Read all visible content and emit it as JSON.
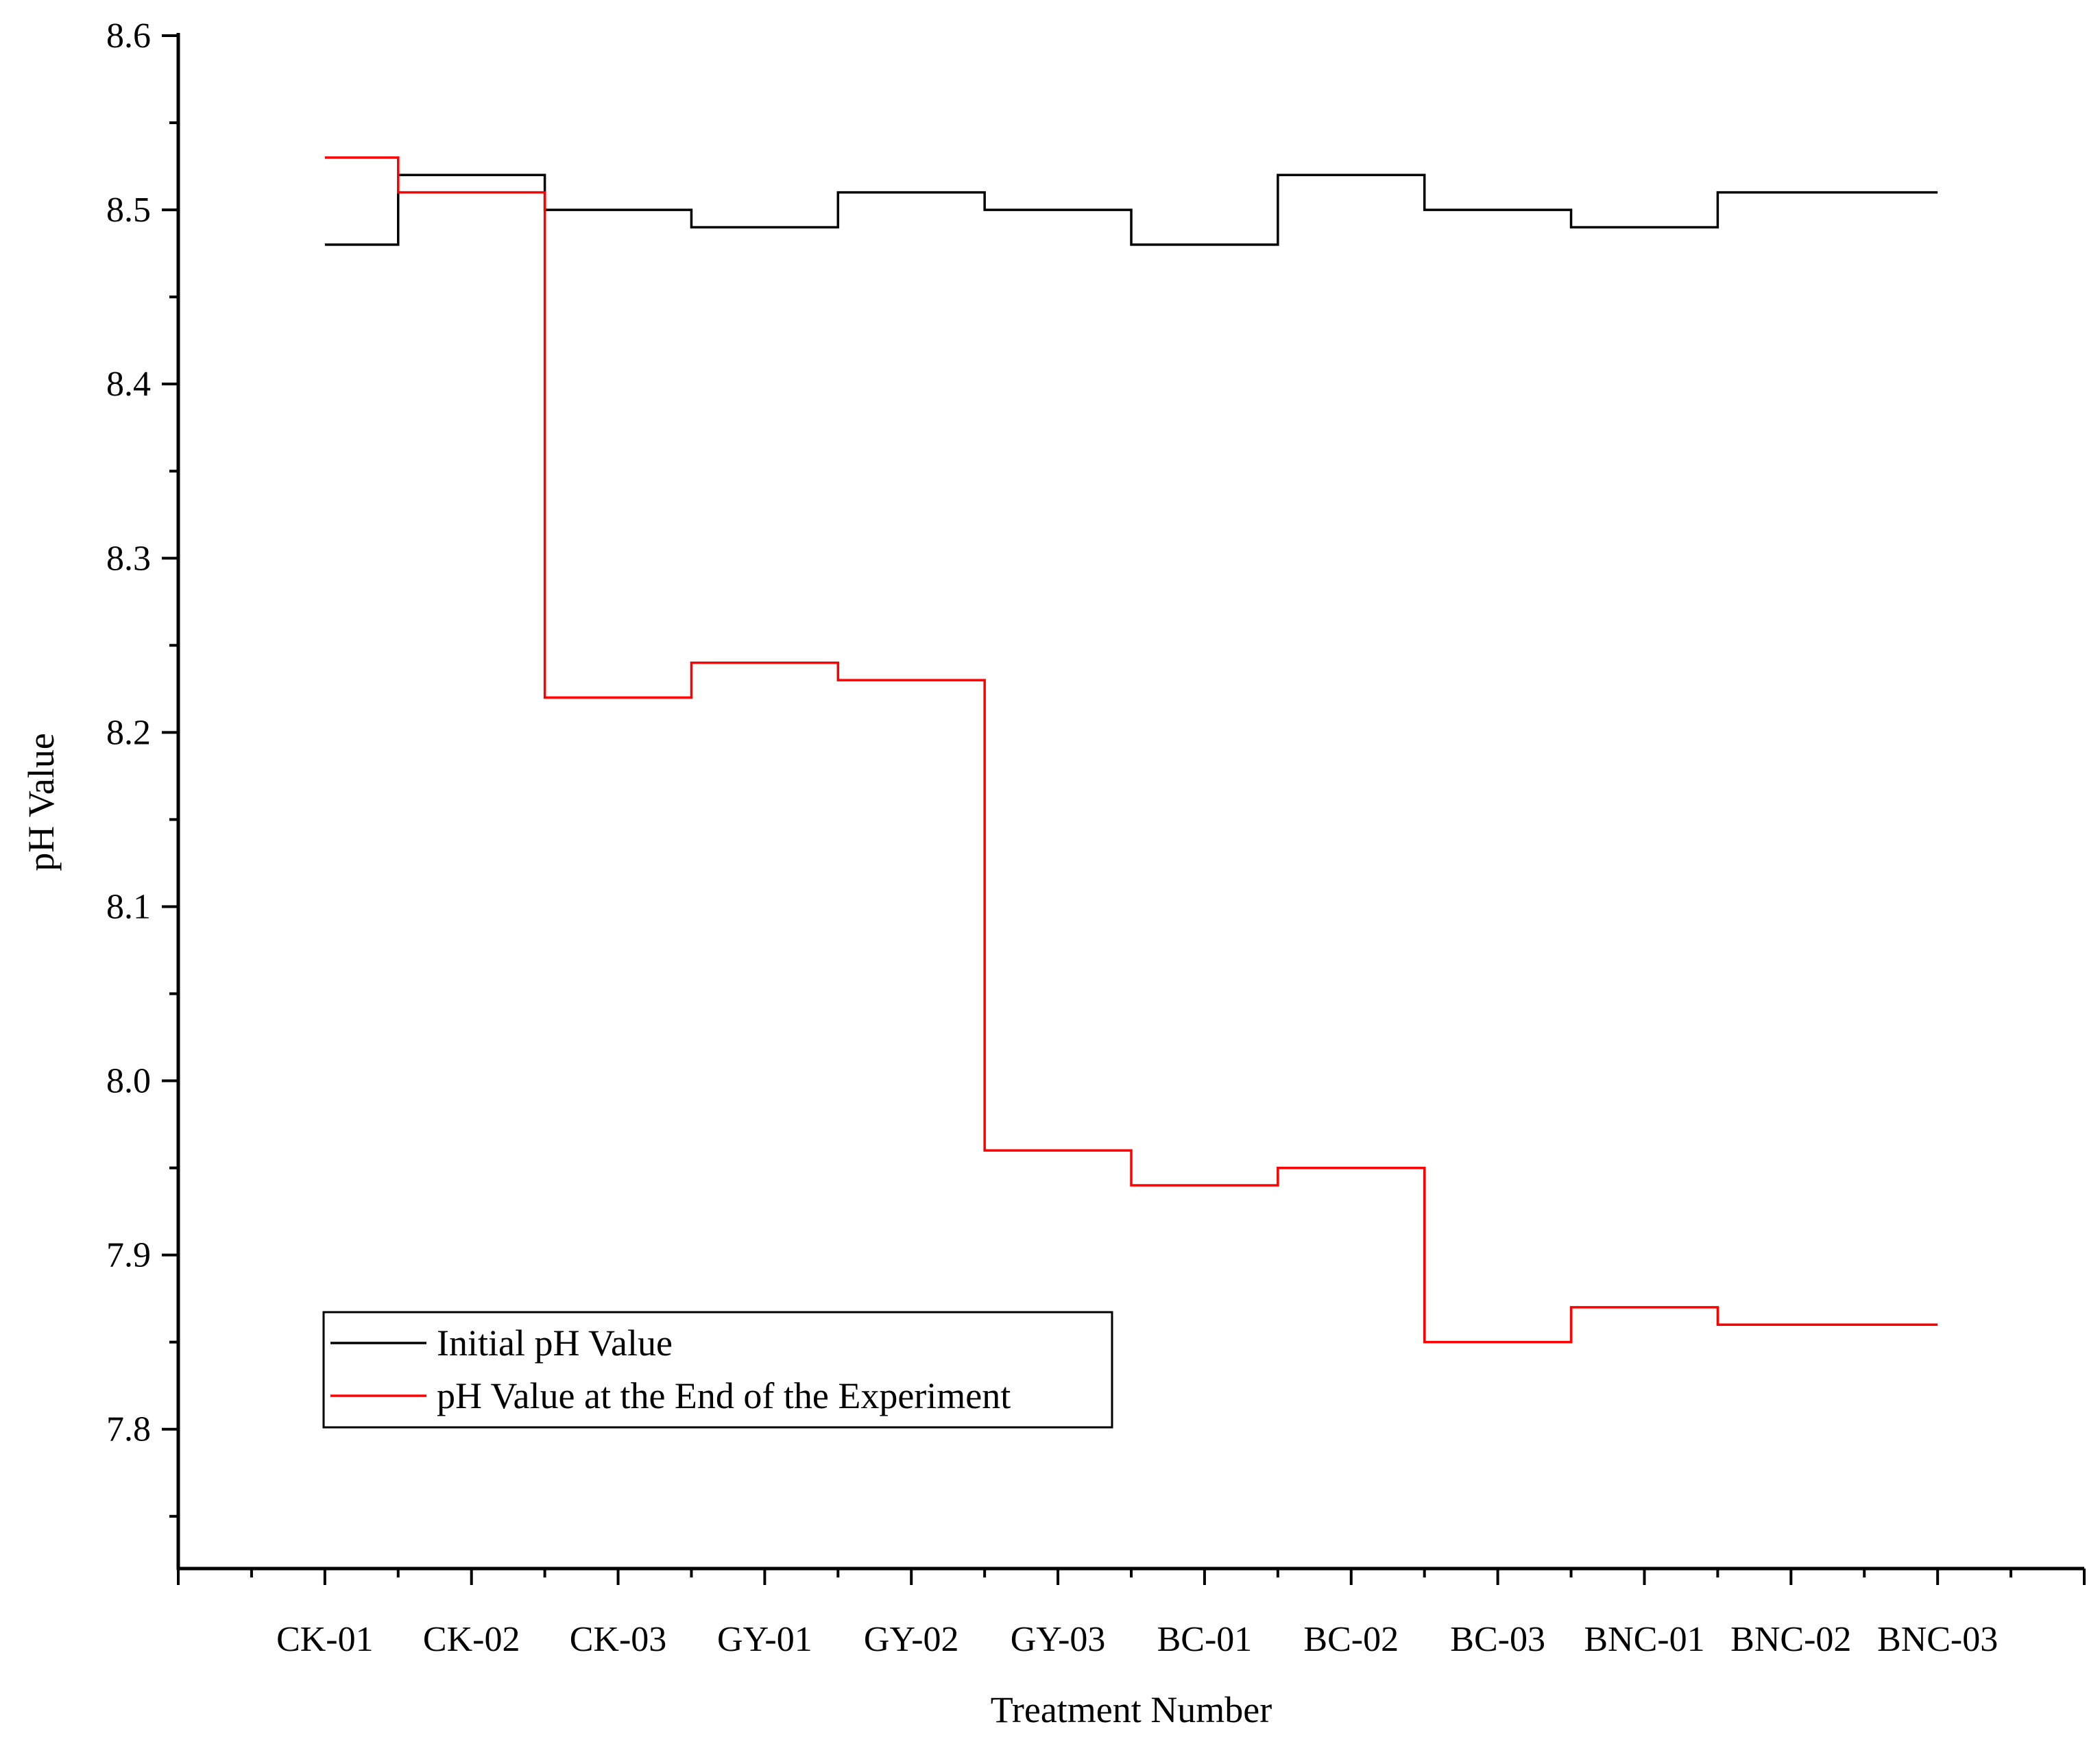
{
  "chart_data": {
    "type": "line",
    "step": "center",
    "title": "",
    "xlabel": "Treatment Number",
    "ylabel": "pH Value",
    "ylim": [
      7.72,
      8.6
    ],
    "yticks": [
      "7.8",
      "7.9",
      "8.0",
      "8.1",
      "8.2",
      "8.3",
      "8.4",
      "8.5",
      "8.6"
    ],
    "categories": [
      "CK-01",
      "CK-02",
      "CK-03",
      "GY-01",
      "GY-02",
      "GY-03",
      "BC-01",
      "BC-02",
      "BC-03",
      "BNC-01",
      "BNC-02",
      "BNC-03"
    ],
    "series": [
      {
        "name": "Initial pH Value",
        "color": "#000000",
        "values": [
          8.48,
          8.52,
          8.5,
          8.49,
          8.51,
          8.5,
          8.48,
          8.52,
          8.5,
          8.49,
          8.51,
          8.51
        ]
      },
      {
        "name": "pH Value at the End of the Experiment",
        "color": "#ff0000",
        "values": [
          8.53,
          8.51,
          8.22,
          8.24,
          8.23,
          7.96,
          7.94,
          7.95,
          7.85,
          7.87,
          7.86,
          7.86
        ]
      }
    ],
    "grid": false,
    "legend_position": "bottom-left"
  }
}
